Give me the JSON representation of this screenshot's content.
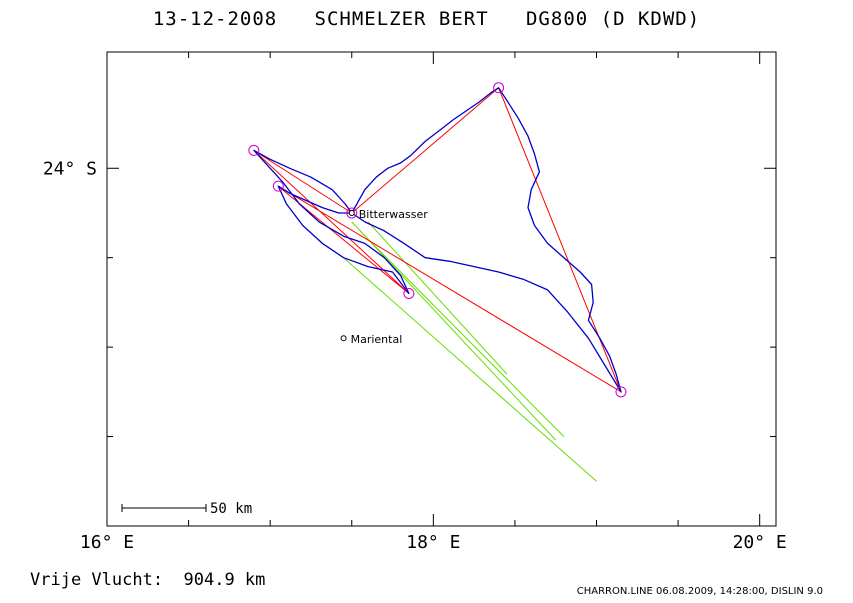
{
  "title": "13-12-2008   SCHMELZER BERT   DG800 (D KDWD)",
  "footer": {
    "distance": "Vrije Vlucht:  904.9 km",
    "credit": "CHARRON.LINE 06.08.2009, 14:28:00, DISLIN 9.0"
  },
  "map": {
    "x_axis": {
      "min": 16.0,
      "max": 20.1,
      "major_ticks": [
        {
          "value": 16,
          "label": "16° E"
        },
        {
          "value": 18,
          "label": "18° E"
        },
        {
          "value": 20,
          "label": "20° E"
        }
      ],
      "minor_ticks": [
        16.5,
        17,
        17.5,
        18.5,
        19,
        19.5
      ]
    },
    "y_axis": {
      "min": -26.0,
      "max": -23.35,
      "major_ticks": [
        {
          "value": -24,
          "label": "24° S"
        }
      ],
      "minor_ticks": [
        -24.5,
        -25,
        -25.5
      ]
    },
    "scale_bar": {
      "label": "50 km"
    },
    "places": [
      {
        "name": "Bitterwasser",
        "lon": 17.5,
        "lat": -24.25
      },
      {
        "name": "Mariental",
        "lon": 17.45,
        "lat": -24.95
      }
    ],
    "turnpoints": [
      {
        "lon": 18.4,
        "lat": -23.55
      },
      {
        "lon": 16.9,
        "lat": -23.9
      },
      {
        "lon": 17.05,
        "lat": -24.1
      },
      {
        "lon": 17.5,
        "lat": -24.25
      },
      {
        "lon": 17.85,
        "lat": -24.7
      },
      {
        "lon": 19.15,
        "lat": -25.25
      }
    ],
    "task_lines": [
      [
        [
          17.5,
          -24.25
        ],
        [
          18.4,
          -23.55
        ],
        [
          19.15,
          -25.25
        ],
        [
          17.05,
          -24.1
        ],
        [
          17.85,
          -24.7
        ],
        [
          16.9,
          -23.9
        ],
        [
          17.5,
          -24.25
        ]
      ]
    ],
    "track": [
      [
        17.5,
        -24.25
      ],
      [
        17.58,
        -24.12
      ],
      [
        17.65,
        -24.05
      ],
      [
        17.72,
        -24.0
      ],
      [
        17.8,
        -23.97
      ],
      [
        17.86,
        -23.93
      ],
      [
        17.95,
        -23.85
      ],
      [
        18.05,
        -23.78
      ],
      [
        18.12,
        -23.73
      ],
      [
        18.2,
        -23.68
      ],
      [
        18.28,
        -23.63
      ],
      [
        18.35,
        -23.58
      ],
      [
        18.4,
        -23.55
      ],
      [
        18.45,
        -23.62
      ],
      [
        18.52,
        -23.72
      ],
      [
        18.58,
        -23.82
      ],
      [
        18.62,
        -23.92
      ],
      [
        18.65,
        -24.02
      ],
      [
        18.6,
        -24.12
      ],
      [
        18.58,
        -24.22
      ],
      [
        18.62,
        -24.32
      ],
      [
        18.7,
        -24.42
      ],
      [
        18.8,
        -24.5
      ],
      [
        18.9,
        -24.58
      ],
      [
        18.97,
        -24.65
      ],
      [
        18.98,
        -24.75
      ],
      [
        18.95,
        -24.85
      ],
      [
        19.02,
        -24.95
      ],
      [
        19.08,
        -25.05
      ],
      [
        19.12,
        -25.15
      ],
      [
        19.15,
        -25.25
      ],
      [
        19.05,
        -25.1
      ],
      [
        18.95,
        -24.95
      ],
      [
        18.82,
        -24.8
      ],
      [
        18.7,
        -24.68
      ],
      [
        18.55,
        -24.62
      ],
      [
        18.4,
        -24.58
      ],
      [
        18.25,
        -24.55
      ],
      [
        18.1,
        -24.52
      ],
      [
        17.95,
        -24.5
      ],
      [
        17.82,
        -24.42
      ],
      [
        17.7,
        -24.35
      ],
      [
        17.58,
        -24.3
      ],
      [
        17.5,
        -24.25
      ],
      [
        17.42,
        -24.25
      ],
      [
        17.32,
        -24.22
      ],
      [
        17.22,
        -24.18
      ],
      [
        17.12,
        -24.14
      ],
      [
        17.05,
        -24.1
      ],
      [
        17.1,
        -24.2
      ],
      [
        17.2,
        -24.32
      ],
      [
        17.32,
        -24.42
      ],
      [
        17.45,
        -24.5
      ],
      [
        17.6,
        -24.55
      ],
      [
        17.75,
        -24.58
      ],
      [
        17.85,
        -24.7
      ],
      [
        17.8,
        -24.6
      ],
      [
        17.7,
        -24.5
      ],
      [
        17.58,
        -24.42
      ],
      [
        17.45,
        -24.38
      ],
      [
        17.3,
        -24.3
      ],
      [
        17.18,
        -24.2
      ],
      [
        17.08,
        -24.08
      ],
      [
        16.98,
        -23.98
      ],
      [
        16.9,
        -23.9
      ],
      [
        17.0,
        -23.95
      ],
      [
        17.12,
        -24.0
      ],
      [
        17.25,
        -24.05
      ],
      [
        17.38,
        -24.12
      ],
      [
        17.46,
        -24.2
      ],
      [
        17.5,
        -24.25
      ]
    ],
    "engine_lines": [
      [
        [
          17.55,
          -24.35
        ],
        [
          18.8,
          -25.5
        ]
      ],
      [
        [
          17.5,
          -24.3
        ],
        [
          18.75,
          -25.52
        ]
      ],
      [
        [
          17.45,
          -24.5
        ],
        [
          19.0,
          -25.75
        ]
      ],
      [
        [
          17.6,
          -24.3
        ],
        [
          18.45,
          -25.15
        ]
      ]
    ],
    "colors": {
      "frame": "#000000",
      "track": "#0000cc",
      "task": "#ff0000",
      "engine": "#66dd00",
      "turnpoint": "#cc00cc"
    }
  }
}
